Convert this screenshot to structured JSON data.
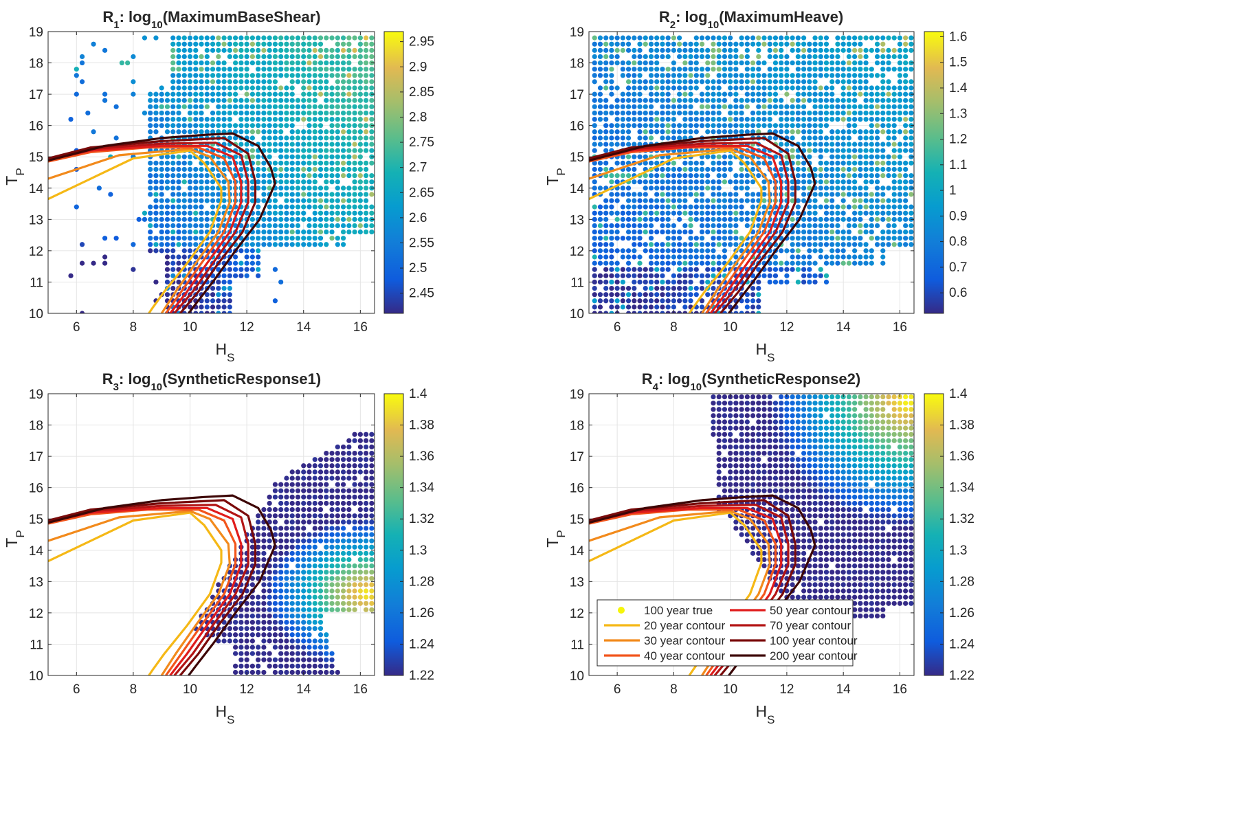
{
  "chart_data": [
    {
      "type": "scatter",
      "title": {
        "symbol": "R",
        "index": "1",
        "prefix": ": log",
        "base": "10",
        "quantity": "(MaximumBaseShear)"
      },
      "xlabel": {
        "main": "H",
        "sub": "S"
      },
      "ylabel": {
        "main": "T",
        "sub": "P"
      },
      "xlim": [
        5,
        16.5
      ],
      "ylim": [
        10,
        19
      ],
      "xticks": [
        "6",
        "8",
        "10",
        "12",
        "14",
        "16"
      ],
      "yticks": [
        "10",
        "11",
        "12",
        "13",
        "14",
        "15",
        "16",
        "17",
        "18",
        "19"
      ],
      "grid": true,
      "colorbar": {
        "clim": [
          2.41,
          2.97
        ],
        "ticks": [
          "2.45",
          "2.5",
          "2.55",
          "2.6",
          "2.65",
          "2.7",
          "2.75",
          "2.8",
          "2.85",
          "2.9",
          "2.95"
        ]
      },
      "response_field": {
        "pattern": "maxshear",
        "x_range": [
          5.8,
          16.5
        ],
        "y_range": [
          10,
          18.8
        ],
        "grid_spacing": 0.2,
        "value_range": [
          2.41,
          2.97
        ],
        "note": "mostly 2.55-2.65, higher values toward large Hs/Tp"
      }
    },
    {
      "type": "scatter",
      "title": {
        "symbol": "R",
        "index": "2",
        "prefix": ": log",
        "base": "10",
        "quantity": "(MaximumHeave)"
      },
      "xlabel": {
        "main": "H",
        "sub": "S"
      },
      "ylabel": {
        "main": "T",
        "sub": "P"
      },
      "xlim": [
        5,
        16.5
      ],
      "ylim": [
        10,
        19
      ],
      "xticks": [
        "6",
        "8",
        "10",
        "12",
        "14",
        "16"
      ],
      "yticks": [
        "10",
        "11",
        "12",
        "13",
        "14",
        "15",
        "16",
        "17",
        "18",
        "19"
      ],
      "grid": true,
      "colorbar": {
        "clim": [
          0.52,
          1.62
        ],
        "ticks": [
          "0.6",
          "0.7",
          "0.8",
          "0.9",
          "1",
          "1.1",
          "1.2",
          "1.3",
          "1.4",
          "1.5",
          "1.6"
        ]
      },
      "response_field": {
        "pattern": "heave",
        "x_range": [
          5.2,
          16.5
        ],
        "y_range": [
          10,
          18.8
        ],
        "grid_spacing": 0.2,
        "value_range": [
          0.52,
          1.62
        ],
        "note": "mostly 0.75-0.95 with scattered higher points"
      }
    },
    {
      "type": "scatter",
      "title": {
        "symbol": "R",
        "index": "3",
        "prefix": ": log",
        "base": "10",
        "quantity": "(SyntheticResponse1)"
      },
      "xlabel": {
        "main": "H",
        "sub": "S"
      },
      "ylabel": {
        "main": "T",
        "sub": "P"
      },
      "xlim": [
        5,
        16.5
      ],
      "ylim": [
        10,
        19
      ],
      "xticks": [
        "6",
        "8",
        "10",
        "12",
        "14",
        "16"
      ],
      "yticks": [
        "10",
        "11",
        "12",
        "13",
        "14",
        "15",
        "16",
        "17",
        "18",
        "19"
      ],
      "grid": true,
      "colorbar": {
        "clim": [
          1.22,
          1.4
        ],
        "ticks": [
          "1.22",
          "1.24",
          "1.26",
          "1.28",
          "1.3",
          "1.32",
          "1.34",
          "1.36",
          "1.38",
          "1.4"
        ]
      },
      "response_field": {
        "pattern": "synth1",
        "x_range": [
          9.2,
          16.4
        ],
        "y_range": [
          10.1,
          17.8
        ],
        "grid_spacing": 0.2,
        "value_range": [
          1.22,
          1.4
        ],
        "note": "peak near Hs 16, Tp 12.5"
      }
    },
    {
      "type": "scatter",
      "title": {
        "symbol": "R",
        "index": "4",
        "prefix": ": log",
        "base": "10",
        "quantity": "(SyntheticResponse2)"
      },
      "xlabel": {
        "main": "H",
        "sub": "S"
      },
      "ylabel": {
        "main": "T",
        "sub": "P"
      },
      "xlim": [
        5,
        16.5
      ],
      "ylim": [
        10,
        19
      ],
      "xticks": [
        "6",
        "8",
        "10",
        "12",
        "14",
        "16"
      ],
      "yticks": [
        "10",
        "11",
        "12",
        "13",
        "14",
        "15",
        "16",
        "17",
        "18",
        "19"
      ],
      "grid": true,
      "colorbar": {
        "clim": [
          1.22,
          1.4
        ],
        "ticks": [
          "1.22",
          "1.24",
          "1.26",
          "1.28",
          "1.3",
          "1.32",
          "1.34",
          "1.36",
          "1.38",
          "1.4"
        ]
      },
      "response_field": {
        "pattern": "synth2",
        "x_range": [
          9.4,
          16.5
        ],
        "y_range": [
          11.9,
          19
        ],
        "grid_spacing": 0.2,
        "value_range": [
          1.22,
          1.4
        ],
        "note": "peak near Hs 16, Tp 18.5"
      },
      "legend": {
        "placement": "bottom-left",
        "entries": [
          {
            "label": "100 year true",
            "kind": "marker",
            "color": "#f5f50a"
          },
          {
            "label": "20 year contour",
            "kind": "line",
            "color": "#f5b816"
          },
          {
            "label": "30 year contour",
            "kind": "line",
            "color": "#f28a1c"
          },
          {
            "label": "40 year contour",
            "kind": "line",
            "color": "#f2551c"
          },
          {
            "label": "50 year contour",
            "kind": "line",
            "color": "#e01c1c"
          },
          {
            "label": "70 year contour",
            "kind": "line",
            "color": "#b31414"
          },
          {
            "label": "100 year contour",
            "kind": "line",
            "color": "#7a0a0a"
          },
          {
            "label": "200 year contour",
            "kind": "line",
            "color": "#3d0606"
          }
        ]
      }
    }
  ],
  "contours": [
    {
      "name": "20 year contour",
      "color": "#f5b816",
      "points": [
        [
          5,
          13.65
        ],
        [
          8,
          14.95
        ],
        [
          10,
          15.2
        ],
        [
          10.5,
          14.8
        ],
        [
          11.1,
          14.0
        ],
        [
          11.1,
          13.6
        ],
        [
          10.7,
          12.6
        ],
        [
          9.9,
          11.6
        ],
        [
          9.1,
          10.7
        ],
        [
          8.7,
          10.2
        ],
        [
          8.55,
          10
        ]
      ]
    },
    {
      "name": "30 year contour",
      "color": "#f28a1c",
      "points": [
        [
          5,
          14.3
        ],
        [
          7.5,
          15.05
        ],
        [
          10,
          15.25
        ],
        [
          10.7,
          15.0
        ],
        [
          11.35,
          14.2
        ],
        [
          11.4,
          13.55
        ],
        [
          11.0,
          12.6
        ],
        [
          10.2,
          11.6
        ],
        [
          9.5,
          10.7
        ],
        [
          9.0,
          10
        ]
      ]
    },
    {
      "name": "40 year contour",
      "color": "#f2551c",
      "points": [
        [
          5,
          14.85
        ],
        [
          6.5,
          15.15
        ],
        [
          8.5,
          15.3
        ],
        [
          10.3,
          15.3
        ],
        [
          11.2,
          14.95
        ],
        [
          11.6,
          14.2
        ],
        [
          11.6,
          13.55
        ],
        [
          11.2,
          12.6
        ],
        [
          10.4,
          11.6
        ],
        [
          9.7,
          10.7
        ],
        [
          9.15,
          10
        ]
      ]
    },
    {
      "name": "50 year contour",
      "color": "#e01c1c",
      "points": [
        [
          5,
          14.9
        ],
        [
          6.5,
          15.2
        ],
        [
          9,
          15.35
        ],
        [
          10.6,
          15.35
        ],
        [
          11.5,
          15.0
        ],
        [
          11.8,
          14.2
        ],
        [
          11.8,
          13.55
        ],
        [
          11.4,
          12.6
        ],
        [
          10.6,
          11.6
        ],
        [
          9.9,
          10.7
        ],
        [
          9.3,
          10
        ]
      ]
    },
    {
      "name": "70 year contour",
      "color": "#b31414",
      "points": [
        [
          5,
          14.92
        ],
        [
          6.5,
          15.25
        ],
        [
          9,
          15.42
        ],
        [
          10.9,
          15.45
        ],
        [
          11.8,
          15.05
        ],
        [
          12.05,
          14.2
        ],
        [
          12.05,
          13.55
        ],
        [
          11.6,
          12.6
        ],
        [
          10.8,
          11.6
        ],
        [
          10.1,
          10.7
        ],
        [
          9.45,
          10
        ]
      ]
    },
    {
      "name": "100 year contour",
      "color": "#7a0a0a",
      "points": [
        [
          5,
          14.95
        ],
        [
          6.5,
          15.3
        ],
        [
          9,
          15.5
        ],
        [
          11.2,
          15.6
        ],
        [
          12.05,
          15.1
        ],
        [
          12.3,
          14.2
        ],
        [
          12.3,
          13.55
        ],
        [
          11.85,
          12.6
        ],
        [
          11.0,
          11.6
        ],
        [
          10.3,
          10.7
        ],
        [
          9.65,
          10
        ]
      ]
    },
    {
      "name": "200 year contour",
      "color": "#3d0606",
      "points": [
        [
          5,
          14.88
        ],
        [
          7,
          15.35
        ],
        [
          9,
          15.6
        ],
        [
          10.5,
          15.7
        ],
        [
          11.5,
          15.75
        ],
        [
          12.4,
          15.35
        ],
        [
          12.85,
          14.65
        ],
        [
          13.0,
          14.15
        ],
        [
          12.45,
          13.0
        ],
        [
          11.6,
          12.0
        ],
        [
          10.8,
          11.0
        ],
        [
          10.2,
          10.3
        ],
        [
          9.95,
          10
        ]
      ]
    }
  ]
}
